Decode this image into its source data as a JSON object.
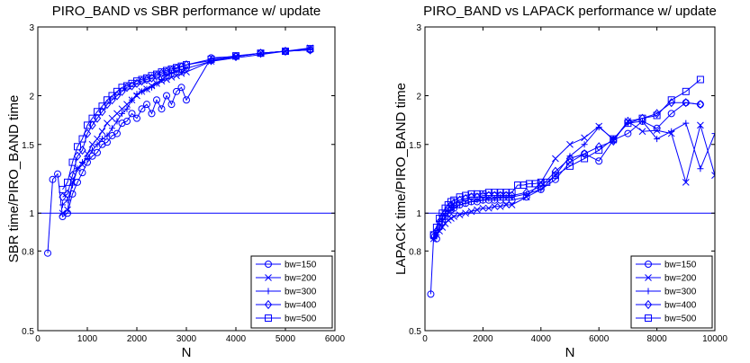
{
  "chart_data": [
    {
      "type": "line",
      "title": "PIRO_BAND vs SBR performance w/ update",
      "xlabel": "N",
      "ylabel": "SBR time/PIRO_BAND time",
      "xlim": [
        0,
        6000
      ],
      "ylim": [
        0.5,
        3
      ],
      "y_scale": "log",
      "x_ticks": [
        0,
        1000,
        2000,
        3000,
        4000,
        5000,
        6000
      ],
      "y_ticks": [
        0.5,
        0.8,
        1,
        1.5,
        2,
        3
      ],
      "x_tick_labels": [
        "0",
        "1000",
        "2000",
        "3000",
        "4000",
        "5000",
        "6000"
      ],
      "y_tick_labels": [
        "0.5",
        "0.8",
        "1",
        "1.5",
        "2",
        "3"
      ],
      "reference_line": 1,
      "legend_position": "bottom-right",
      "series": [
        {
          "name": "bw=150",
          "marker": "circle",
          "x": [
            200,
            300,
            400,
            500,
            600,
            700,
            800,
            900,
            1000,
            1100,
            1200,
            1300,
            1400,
            1500,
            1600,
            1700,
            1800,
            1900,
            2000,
            2100,
            2200,
            2300,
            2400,
            2500,
            2600,
            2700,
            2800,
            2900,
            3000,
            3500,
            4000,
            4500,
            5000,
            5500
          ],
          "y": [
            0.79,
            1.22,
            1.26,
            0.98,
            1.0,
            1.12,
            1.2,
            1.27,
            1.35,
            1.4,
            1.43,
            1.5,
            1.52,
            1.58,
            1.6,
            1.7,
            1.72,
            1.8,
            1.75,
            1.85,
            1.9,
            1.8,
            1.95,
            1.85,
            2.0,
            1.9,
            2.05,
            2.1,
            1.95,
            2.5,
            2.52,
            2.57,
            2.6,
            2.62
          ]
        },
        {
          "name": "bw=200",
          "marker": "x",
          "x": [
            500,
            600,
            700,
            800,
            900,
            1000,
            1100,
            1200,
            1300,
            1400,
            1500,
            1600,
            1700,
            1800,
            1900,
            2000,
            2100,
            2200,
            2300,
            2400,
            2500,
            2600,
            2700,
            2800,
            2900,
            3000,
            3500,
            4000,
            4500,
            5000,
            5500
          ],
          "y": [
            1.0,
            1.02,
            1.2,
            1.3,
            1.33,
            1.42,
            1.5,
            1.55,
            1.62,
            1.7,
            1.75,
            1.8,
            1.85,
            1.9,
            1.95,
            2.0,
            2.05,
            2.08,
            2.12,
            2.15,
            2.18,
            2.2,
            2.23,
            2.25,
            2.28,
            2.3,
            2.45,
            2.52,
            2.57,
            2.6,
            2.65
          ]
        },
        {
          "name": "bw=300",
          "marker": "plus",
          "x": [
            500,
            600,
            700,
            800,
            900,
            1000,
            1100,
            1200,
            1300,
            1400,
            1500,
            1600,
            1700,
            1800,
            1900,
            2000,
            2100,
            2200,
            2300,
            2400,
            2500,
            2600,
            2700,
            2800,
            2900,
            3000,
            3500,
            4000,
            4500,
            5000,
            5500
          ],
          "y": [
            1.05,
            1.08,
            1.18,
            1.3,
            1.35,
            1.38,
            1.45,
            1.5,
            1.55,
            1.58,
            1.65,
            1.72,
            1.8,
            1.85,
            1.95,
            2.02,
            2.05,
            2.08,
            2.1,
            2.15,
            2.2,
            2.25,
            2.28,
            2.3,
            2.3,
            2.35,
            2.45,
            2.5,
            2.55,
            2.6,
            2.62
          ]
        },
        {
          "name": "bw=400",
          "marker": "diamond",
          "x": [
            500,
            600,
            700,
            800,
            900,
            1000,
            1100,
            1200,
            1300,
            1400,
            1500,
            1600,
            1700,
            1800,
            1900,
            2000,
            2100,
            2200,
            2300,
            2400,
            2500,
            2600,
            2700,
            2800,
            2900,
            3000,
            3500,
            4000,
            4500,
            5000,
            5500
          ],
          "y": [
            1.1,
            1.12,
            1.25,
            1.4,
            1.45,
            1.6,
            1.68,
            1.75,
            1.82,
            1.9,
            1.95,
            2.0,
            2.05,
            2.1,
            2.12,
            2.15,
            2.18,
            2.2,
            2.22,
            2.25,
            2.28,
            2.3,
            2.32,
            2.35,
            2.37,
            2.4,
            2.46,
            2.52,
            2.57,
            2.6,
            2.62
          ]
        },
        {
          "name": "bw=500",
          "marker": "square",
          "x": [
            500,
            600,
            700,
            800,
            900,
            1000,
            1100,
            1200,
            1300,
            1400,
            1500,
            1600,
            1700,
            1800,
            1900,
            2000,
            2100,
            2200,
            2300,
            2400,
            2500,
            2600,
            2700,
            2800,
            2900,
            3000,
            3500,
            4000,
            4500,
            5000,
            5500
          ],
          "y": [
            1.15,
            1.2,
            1.35,
            1.48,
            1.55,
            1.68,
            1.75,
            1.82,
            1.88,
            1.95,
            2.0,
            2.05,
            2.1,
            2.12,
            2.15,
            2.18,
            2.2,
            2.22,
            2.25,
            2.27,
            2.3,
            2.32,
            2.34,
            2.36,
            2.38,
            2.4,
            2.48,
            2.53,
            2.57,
            2.6,
            2.64
          ]
        }
      ]
    },
    {
      "type": "line",
      "title": "PIRO_BAND vs LAPACK performance w/ update",
      "xlabel": "N",
      "ylabel": "LAPACK time/PIRO_BAND time",
      "xlim": [
        0,
        10000
      ],
      "ylim": [
        0.5,
        3
      ],
      "y_scale": "log",
      "x_ticks": [
        0,
        2000,
        4000,
        6000,
        8000,
        10000
      ],
      "y_ticks": [
        0.5,
        0.8,
        1,
        1.5,
        2,
        3
      ],
      "x_tick_labels": [
        "0",
        "2000",
        "4000",
        "6000",
        "8000",
        "10000"
      ],
      "y_tick_labels": [
        "0.5",
        "0.8",
        "1",
        "1.5",
        "2",
        "3"
      ],
      "reference_line": 1,
      "legend_position": "bottom-right",
      "series": [
        {
          "name": "bw=150",
          "marker": "circle",
          "x": [
            200,
            300,
            400,
            500,
            600,
            700,
            800,
            900,
            1000,
            1200,
            1400,
            1600,
            1800,
            2000,
            2200,
            2400,
            2600,
            2800,
            3000,
            3500,
            4000,
            4500,
            5000,
            5500,
            6000,
            6500,
            7000,
            7500,
            8000,
            8500,
            9000,
            9500
          ],
          "y": [
            0.62,
            0.88,
            0.86,
            0.92,
            0.95,
            0.98,
            1.0,
            1.02,
            1.03,
            1.05,
            1.06,
            1.07,
            1.07,
            1.08,
            1.08,
            1.08,
            1.08,
            1.08,
            1.08,
            1.1,
            1.15,
            1.22,
            1.35,
            1.42,
            1.36,
            1.54,
            1.6,
            1.72,
            1.65,
            1.8,
            1.92,
            1.9
          ]
        },
        {
          "name": "bw=200",
          "marker": "x",
          "x": [
            300,
            400,
            500,
            600,
            700,
            800,
            900,
            1000,
            1200,
            1400,
            1600,
            1800,
            2000,
            2200,
            2400,
            2600,
            2800,
            3000,
            3500,
            4000,
            4500,
            5000,
            5500,
            6000,
            6500,
            7000,
            7500,
            8000,
            8500,
            9000,
            9500,
            10000
          ],
          "y": [
            0.86,
            0.88,
            0.9,
            0.92,
            0.94,
            0.96,
            0.97,
            0.98,
            0.99,
            1.0,
            1.01,
            1.02,
            1.03,
            1.03,
            1.04,
            1.04,
            1.05,
            1.05,
            1.1,
            1.2,
            1.38,
            1.5,
            1.56,
            1.67,
            1.54,
            1.72,
            1.62,
            1.63,
            1.6,
            1.2,
            1.68,
            1.25
          ]
        },
        {
          "name": "bw=300",
          "marker": "plus",
          "x": [
            300,
            400,
            500,
            600,
            700,
            800,
            900,
            1000,
            1200,
            1400,
            1600,
            1800,
            2000,
            2200,
            2400,
            2600,
            2800,
            3000,
            3500,
            4000,
            4500,
            5000,
            5500,
            6000,
            6500,
            7000,
            7500,
            8000,
            8500,
            9000,
            9500,
            10000
          ],
          "y": [
            0.86,
            0.88,
            0.92,
            0.95,
            0.98,
            1.0,
            1.02,
            1.03,
            1.05,
            1.06,
            1.07,
            1.08,
            1.08,
            1.09,
            1.09,
            1.1,
            1.1,
            1.1,
            1.12,
            1.15,
            1.25,
            1.4,
            1.5,
            1.66,
            1.55,
            1.7,
            1.72,
            1.55,
            1.62,
            1.7,
            1.3,
            1.6
          ]
        },
        {
          "name": "bw=400",
          "marker": "diamond",
          "x": [
            300,
            400,
            500,
            600,
            700,
            800,
            900,
            1000,
            1200,
            1400,
            1600,
            1800,
            2000,
            2200,
            2400,
            2600,
            2800,
            3000,
            3500,
            4000,
            4500,
            5000,
            5500,
            6000,
            6500,
            7000,
            7500,
            8000,
            8500,
            9000,
            9500
          ],
          "y": [
            0.87,
            0.9,
            0.95,
            0.98,
            1.0,
            1.03,
            1.05,
            1.06,
            1.08,
            1.09,
            1.1,
            1.1,
            1.11,
            1.11,
            1.11,
            1.11,
            1.11,
            1.11,
            1.13,
            1.17,
            1.28,
            1.38,
            1.42,
            1.48,
            1.53,
            1.72,
            1.75,
            1.8,
            1.92,
            1.92,
            1.9
          ]
        },
        {
          "name": "bw=500",
          "marker": "square",
          "x": [
            300,
            400,
            500,
            600,
            700,
            800,
            900,
            1000,
            1200,
            1400,
            1600,
            1800,
            2000,
            2200,
            2400,
            2600,
            2800,
            3000,
            3200,
            3400,
            3600,
            3800,
            4000,
            4200,
            4500,
            5000,
            5500,
            6000,
            6500,
            7000,
            7500,
            8000,
            8500,
            9000,
            9500
          ],
          "y": [
            0.88,
            0.92,
            0.97,
            1.0,
            1.03,
            1.05,
            1.07,
            1.08,
            1.1,
            1.11,
            1.12,
            1.12,
            1.12,
            1.13,
            1.13,
            1.13,
            1.13,
            1.13,
            1.18,
            1.18,
            1.19,
            1.19,
            1.2,
            1.2,
            1.25,
            1.32,
            1.38,
            1.45,
            1.55,
            1.7,
            1.75,
            1.78,
            1.95,
            2.05,
            2.2
          ]
        }
      ]
    }
  ]
}
